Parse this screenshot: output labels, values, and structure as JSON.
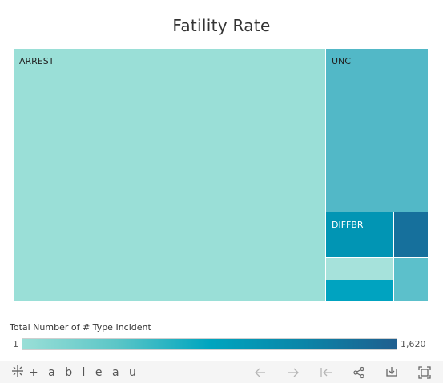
{
  "chart_data": {
    "type": "treemap",
    "title": "Fatility Rate",
    "legend": {
      "title": "Total Number of # Type Incident",
      "min_label": "1",
      "max_label": "1,620",
      "colors": [
        "#9adfd7",
        "#5cc6c7",
        "#00a5bf",
        "#0a85a8",
        "#1f5f8f"
      ]
    },
    "tiles": [
      {
        "label": "ARREST",
        "color": "#9adfd7",
        "label_color": "#222222"
      },
      {
        "label": "UNC",
        "color": "#52b8c7",
        "label_color": "#222222"
      },
      {
        "label": "DIFFBR",
        "color": "#0195b4",
        "label_color": "#ffffff"
      },
      {
        "label": "",
        "color": "#16709c"
      },
      {
        "label": "",
        "color": "#a6e2db"
      },
      {
        "label": "",
        "color": "#5cc0cb"
      },
      {
        "label": "",
        "color": "#00a3c0"
      }
    ]
  },
  "toolbar": {
    "logo_text": "+ a b l e a u"
  }
}
